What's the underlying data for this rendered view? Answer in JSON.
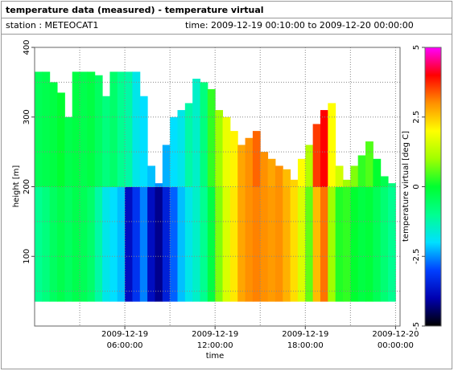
{
  "header": {
    "title": "temperature data (measured) - temperature virtual",
    "station": "station : METEOCAT1",
    "time_range": "time: 2009-12-19 00:10:00 to 2009-12-20 00:00:00"
  },
  "chart_data": {
    "type": "heatmap",
    "xlabel": "time",
    "ylabel": "height [m]",
    "colorbar_label": "temperature virtual [deg C]",
    "xlim": [
      0,
      24.3
    ],
    "xticks": [
      {
        "value": 6,
        "label": "2009-12-19\n06:00:00"
      },
      {
        "value": 12,
        "label": "2009-12-19\n12:00:00"
      },
      {
        "value": 18,
        "label": "2009-12-19\n18:00:00"
      },
      {
        "value": 24,
        "label": "2009-12-20\n00:00:00"
      }
    ],
    "xticks_minor": [
      3,
      9,
      15,
      21
    ],
    "ylim": [
      0,
      400
    ],
    "yticks": [
      100,
      200,
      300,
      400
    ],
    "yticks_minor": [
      50,
      150,
      250,
      350
    ],
    "grid": true,
    "clim": [
      -5,
      5
    ],
    "cticks": [
      5,
      2.5,
      0,
      -2.5,
      -5
    ],
    "colormap": [
      "#000000",
      "#0000b0",
      "#0040ff",
      "#00e0ff",
      "#00ff90",
      "#00ff30",
      "#a0ff00",
      "#ffff00",
      "#ff9000",
      "#ff0000",
      "#ff00ff"
    ],
    "levels": [
      35,
      200
    ],
    "x": [
      0,
      0.5,
      1,
      1.5,
      2,
      2.5,
      3,
      3.5,
      4,
      4.5,
      5,
      5.5,
      6,
      6.5,
      7,
      7.5,
      8,
      8.5,
      9,
      9.5,
      10,
      10.5,
      11,
      11.5,
      12,
      12.5,
      13,
      13.5,
      14,
      14.5,
      15,
      15.5,
      16,
      16.5,
      17,
      17.5,
      18,
      18.5,
      19,
      19.5,
      20,
      20.5,
      21,
      21.5,
      22,
      22.5,
      23,
      23.5
    ],
    "tops": [
      365,
      365,
      350,
      335,
      300,
      365,
      365,
      365,
      360,
      330,
      365,
      365,
      365,
      365,
      330,
      230,
      205,
      260,
      300,
      310,
      320,
      355,
      350,
      340,
      310,
      300,
      280,
      260,
      270,
      280,
      250,
      240,
      230,
      225,
      210,
      240,
      260,
      290,
      310,
      320,
      230,
      210,
      230,
      245,
      265,
      240,
      215,
      205
    ],
    "z": [
      [
        -1,
        -0.8,
        -0.5,
        -0.3,
        -0.5,
        -0.3,
        -0.4,
        -0.6,
        -1.2,
        -1.8,
        -2,
        -2.2,
        -3.8,
        -3.2,
        -2.6,
        -3.8,
        -4.2,
        -3.5,
        -2.8,
        -2.2,
        -1.8,
        -1.5,
        -1,
        -0.2,
        0.8,
        1.6,
        2.2,
        2.8,
        3,
        3.1,
        3,
        2.9,
        3,
        2.7,
        2.3,
        1.6,
        0.6,
        2.6,
        3.2,
        1,
        0.2,
        0.3,
        0,
        -0.2,
        -0.1,
        -0.4,
        -0.7,
        -1
      ],
      [
        -0.4,
        -0.3,
        -0.2,
        0,
        -0.3,
        -0.2,
        -0.3,
        -0.2,
        -0.5,
        -0.8,
        -0.6,
        -1,
        -1.2,
        -1.8,
        -2,
        -2.2,
        -2.5,
        -2.3,
        -2,
        -1.8,
        -1.2,
        -1.5,
        -0.8,
        0.3,
        1,
        1.8,
        2.1,
        2.8,
        3,
        3.3,
        3,
        2.8,
        3,
        2.6,
        2.4,
        2,
        1.2,
        3.6,
        4,
        2,
        1.5,
        1,
        0.8,
        0.3,
        0.5,
        0,
        -0.3,
        -0.8
      ]
    ]
  }
}
